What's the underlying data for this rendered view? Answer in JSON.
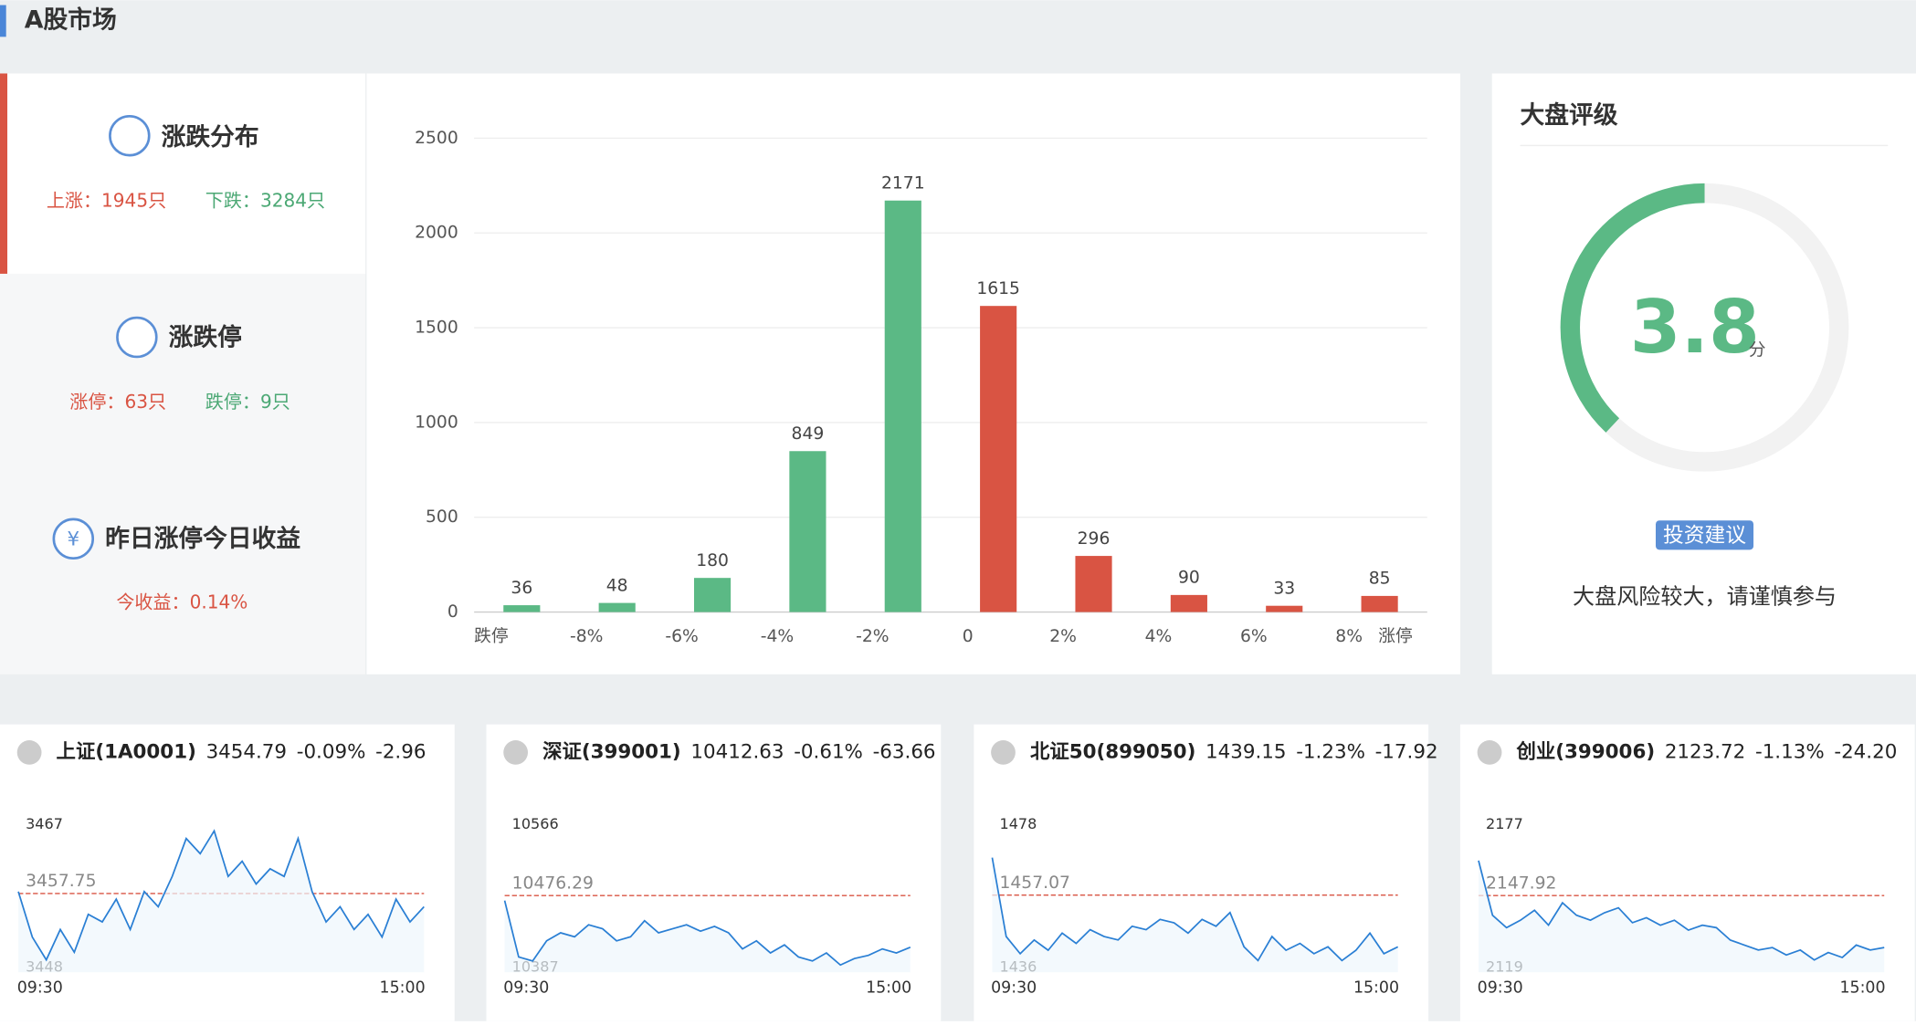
{
  "header": {
    "title": "A股市场"
  },
  "sidebar": [
    {
      "title": "涨跌分布",
      "up": "上涨：1945只",
      "down": "下跌：3284只"
    },
    {
      "title": "涨跌停",
      "up": "涨停：63只",
      "down": "跌停：9只"
    },
    {
      "title": "昨日涨停今日收益",
      "up": "今收益：0.14%"
    }
  ],
  "distribution": {
    "type": "bar",
    "xticks": [
      "跌停",
      "-8%",
      "-6%",
      "-4%",
      "-2%",
      "0",
      "2%",
      "4%",
      "6%",
      "8%",
      "涨停"
    ],
    "values": [
      36,
      48,
      180,
      849,
      2171,
      1615,
      296,
      90,
      33,
      85
    ],
    "colors": [
      "#5bb985",
      "#5bb985",
      "#5bb985",
      "#5bb985",
      "#5bb985",
      "#d95443",
      "#d95443",
      "#d95443",
      "#d95443",
      "#d95443"
    ],
    "ylim": [
      0,
      2500
    ],
    "yticks": [
      0,
      500,
      1000,
      1500,
      2000,
      2500
    ],
    "grid": true
  },
  "rating": {
    "title": "大盘评级",
    "score": 3.8,
    "score_max": 10,
    "unit": "分",
    "color": "#5bb985",
    "badge": "投资建议",
    "advice": "大盘风险较大，请谨慎参与"
  },
  "cards": [
    {
      "name": "上证(1A0001)",
      "price": "3454.79",
      "pct": "-0.09%",
      "change": "-2.96",
      "ylim": [
        3448,
        3467
      ],
      "ref": 3457.75,
      "x_labels": [
        "09:30",
        "15:00"
      ],
      "values": [
        3458,
        3452,
        3449,
        3453,
        3450,
        3455,
        3454,
        3457,
        3453,
        3458,
        3456,
        3460,
        3465,
        3463,
        3466,
        3460,
        3462,
        3459,
        3461,
        3460,
        3465,
        3458,
        3454,
        3456,
        3453,
        3455,
        3452,
        3457,
        3454,
        3456
      ]
    },
    {
      "name": "深证(399001)",
      "price": "10412.63",
      "pct": "-0.61%",
      "change": "-63.66",
      "ylim": [
        10387,
        10566
      ],
      "ref": 10476.29,
      "x_labels": [
        "09:30",
        "15:00"
      ],
      "values": [
        10470,
        10400,
        10395,
        10420,
        10430,
        10425,
        10440,
        10435,
        10420,
        10425,
        10445,
        10430,
        10435,
        10440,
        10432,
        10438,
        10430,
        10410,
        10420,
        10405,
        10415,
        10400,
        10395,
        10405,
        10390,
        10398,
        10402,
        10410,
        10405,
        10412
      ]
    },
    {
      "name": "北证50(899050)",
      "price": "1439.15",
      "pct": "-1.23%",
      "change": "-17.92",
      "ylim": [
        1436,
        1478
      ],
      "ref": 1457.07,
      "x_labels": [
        "09:30",
        "15:00"
      ],
      "values": [
        1468,
        1445,
        1440,
        1444,
        1441,
        1446,
        1443,
        1447,
        1445,
        1444,
        1448,
        1447,
        1450,
        1449,
        1446,
        1450,
        1448,
        1452,
        1442,
        1438,
        1445,
        1441,
        1443,
        1440,
        1442,
        1438,
        1441,
        1446,
        1440,
        1442
      ]
    },
    {
      "name": "创业(399006)",
      "price": "2123.72",
      "pct": "-1.13%",
      "change": "-24.20",
      "ylim": [
        2119,
        2177
      ],
      "ref": 2147.92,
      "x_labels": [
        "09:30",
        "15:00"
      ],
      "values": [
        2162,
        2140,
        2135,
        2138,
        2142,
        2136,
        2145,
        2140,
        2138,
        2141,
        2143,
        2137,
        2139,
        2136,
        2138,
        2134,
        2136,
        2135,
        2130,
        2128,
        2126,
        2127,
        2124,
        2126,
        2122,
        2125,
        2123,
        2128,
        2126,
        2127
      ]
    }
  ]
}
